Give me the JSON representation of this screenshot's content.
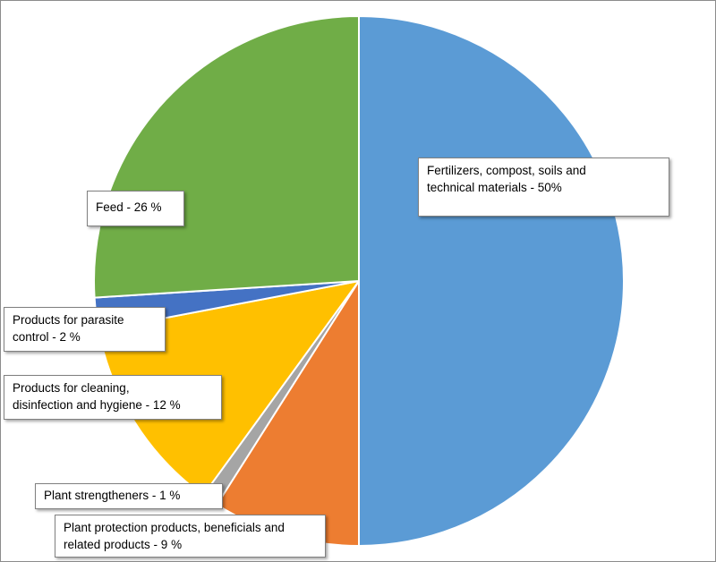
{
  "chart_data": {
    "type": "pie",
    "title": "",
    "start_angle_deg": 0,
    "direction": "clockwise",
    "slices": [
      {
        "label_lines": [
          "Fertilizers, compost, soils and",
          "technical materials  - 50%"
        ],
        "value": 50,
        "color": "#5b9bd5"
      },
      {
        "label_lines": [
          "Plant protection products, beneficials and",
          "related products - 9 %"
        ],
        "value": 9,
        "color": "#ed7d31"
      },
      {
        "label_lines": [
          "Plant strengtheners - 1 %"
        ],
        "value": 1,
        "color": "#a5a5a5"
      },
      {
        "label_lines": [
          "Products for cleaning,",
          "disinfection and hygiene - 12 %"
        ],
        "value": 12,
        "color": "#ffc000"
      },
      {
        "label_lines": [
          "Products for parasite",
          "control - 2 %"
        ],
        "value": 2,
        "color": "#4472c4"
      },
      {
        "label_lines": [
          "Feed - 26 %"
        ],
        "value": 26,
        "color": "#70ad47"
      }
    ]
  }
}
